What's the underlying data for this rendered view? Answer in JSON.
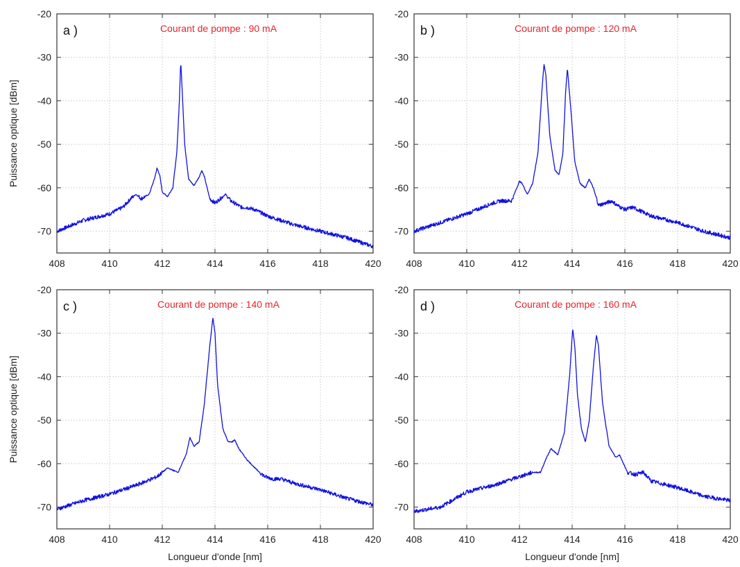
{
  "chart_data": [
    {
      "type": "line",
      "panel_label": "a )",
      "annotation": "Courant de pompe : 90 mA",
      "xlabel": "",
      "ylabel": "Puissance optique [dBm]",
      "xlim": [
        408,
        420
      ],
      "ylim": [
        -75,
        -20
      ],
      "xticks": [
        408,
        410,
        412,
        414,
        416,
        418,
        420
      ],
      "yticks": [
        -70,
        -60,
        -50,
        -40,
        -30,
        -20
      ],
      "grid": true,
      "series": [
        {
          "color": "#1010e0",
          "x": [
            408,
            409,
            410,
            410.5,
            410.8,
            411.0,
            411.2,
            411.5,
            411.7,
            411.8,
            411.9,
            412.0,
            412.2,
            412.4,
            412.55,
            412.65,
            412.7,
            412.75,
            412.85,
            413.0,
            413.2,
            413.4,
            413.5,
            413.6,
            413.8,
            414.0,
            414.2,
            414.4,
            414.6,
            415.0,
            415.2,
            415.5,
            416.0,
            417.0,
            418.0,
            419.0,
            419.5,
            420.0
          ],
          "y": [
            -70,
            -67.5,
            -66,
            -64.5,
            -62.5,
            -61.5,
            -62.5,
            -61.5,
            -58,
            -55.5,
            -57,
            -61,
            -62,
            -60,
            -52,
            -40,
            -31,
            -37,
            -50,
            -58,
            -59.5,
            -57.5,
            -56,
            -57.5,
            -62.5,
            -63.5,
            -62.5,
            -61.5,
            -63,
            -64.5,
            -64.5,
            -65,
            -66.5,
            -68.5,
            -70,
            -71.5,
            -72.5,
            -73.5
          ]
        }
      ]
    },
    {
      "type": "line",
      "panel_label": "b )",
      "annotation": "Courant de pompe : 120 mA",
      "xlabel": "",
      "ylabel": "",
      "xlim": [
        408,
        420
      ],
      "ylim": [
        -75,
        -20
      ],
      "xticks": [
        408,
        410,
        412,
        414,
        416,
        418,
        420
      ],
      "yticks": [
        -70,
        -60,
        -50,
        -40,
        -30,
        -20
      ],
      "grid": true,
      "series": [
        {
          "color": "#1010e0",
          "x": [
            408,
            409,
            410,
            411,
            411.3,
            411.7,
            411.9,
            412.0,
            412.1,
            412.3,
            412.5,
            412.7,
            412.85,
            412.93,
            413.0,
            413.15,
            413.35,
            413.5,
            413.65,
            413.75,
            413.82,
            413.95,
            414.1,
            414.3,
            414.5,
            414.65,
            414.8,
            415.0,
            415.3,
            415.5,
            415.7,
            416.0,
            416.3,
            417.0,
            418.0,
            419.0,
            420.0
          ],
          "y": [
            -70,
            -68,
            -66,
            -63.5,
            -63,
            -63,
            -60,
            -58.5,
            -59,
            -61.5,
            -59,
            -52,
            -38,
            -31.5,
            -34,
            -48,
            -56,
            -57,
            -52,
            -38,
            -32.5,
            -42,
            -54,
            -59,
            -60,
            -58,
            -60,
            -64,
            -63.5,
            -63,
            -64,
            -65,
            -64.5,
            -66.5,
            -68,
            -70,
            -71.5
          ]
        }
      ]
    },
    {
      "type": "line",
      "panel_label": "c )",
      "annotation": "Courant de pompe : 140 mA",
      "xlabel": "Longueur d'onde [nm]",
      "ylabel": "Puissance optique [dBm]",
      "xlim": [
        408,
        420
      ],
      "ylim": [
        -75,
        -20
      ],
      "xticks": [
        408,
        410,
        412,
        414,
        416,
        418,
        420
      ],
      "yticks": [
        -70,
        -60,
        -50,
        -40,
        -30,
        -20
      ],
      "grid": true,
      "series": [
        {
          "color": "#1010e0",
          "x": [
            408,
            409,
            410,
            411,
            411.8,
            412.2,
            412.6,
            412.9,
            413.05,
            413.2,
            413.4,
            413.6,
            413.8,
            413.92,
            414.0,
            414.1,
            414.3,
            414.5,
            414.65,
            414.75,
            414.9,
            415.2,
            415.6,
            415.9,
            416.2,
            416.5,
            417.0,
            418.0,
            419.0,
            420.0
          ],
          "y": [
            -70.5,
            -68.5,
            -67,
            -65,
            -63,
            -61,
            -62,
            -58,
            -54,
            -56,
            -55,
            -46,
            -33,
            -26.5,
            -30,
            -42,
            -52,
            -55,
            -55,
            -54.5,
            -56.5,
            -59,
            -61.5,
            -63,
            -63.5,
            -63.5,
            -64.5,
            -66,
            -68,
            -69.5
          ]
        }
      ]
    },
    {
      "type": "line",
      "panel_label": "d )",
      "annotation": "Courant de pompe : 160 mA",
      "xlabel": "Longueur d'onde [nm]",
      "ylabel": "",
      "xlim": [
        408,
        420
      ],
      "ylim": [
        -75,
        -20
      ],
      "xticks": [
        408,
        410,
        412,
        414,
        416,
        418,
        420
      ],
      "yticks": [
        -70,
        -60,
        -50,
        -40,
        -30,
        -20
      ],
      "grid": true,
      "series": [
        {
          "color": "#1010e0",
          "x": [
            408,
            409,
            410,
            411,
            412,
            412.5,
            412.8,
            413.0,
            413.2,
            413.45,
            413.7,
            413.9,
            414.02,
            414.1,
            414.2,
            414.35,
            414.5,
            414.65,
            414.8,
            414.92,
            415.0,
            415.15,
            415.4,
            415.65,
            415.8,
            416.1,
            416.4,
            416.7,
            417.0,
            418.0,
            419.0,
            420.0
          ],
          "y": [
            -71,
            -70,
            -66.5,
            -65,
            -63,
            -62,
            -62,
            -59,
            -56.5,
            -58,
            -53,
            -40,
            -29,
            -33,
            -44,
            -52,
            -55,
            -50,
            -38,
            -30.5,
            -33,
            -46,
            -56,
            -58.5,
            -58,
            -62,
            -62.5,
            -62,
            -64,
            -65.5,
            -67.5,
            -68.5
          ]
        }
      ]
    }
  ]
}
